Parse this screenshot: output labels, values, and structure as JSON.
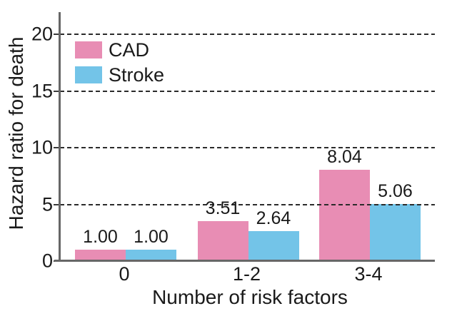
{
  "chart_data": {
    "type": "bar",
    "title": "",
    "xlabel": "Number of risk factors",
    "ylabel": "Hazard ratio for death",
    "categories": [
      "0",
      "1-2",
      "3-4"
    ],
    "series": [
      {
        "name": "CAD",
        "color": "#e88db4",
        "values": [
          1.0,
          3.51,
          8.04
        ],
        "value_labels": [
          "1.00",
          "3.51",
          "8.04"
        ]
      },
      {
        "name": "Stroke",
        "color": "#73c4e8",
        "values": [
          1.0,
          2.64,
          5.06
        ],
        "value_labels": [
          "1.00",
          "2.64",
          "5.06"
        ]
      }
    ],
    "yticks": [
      0,
      5,
      10,
      15,
      20
    ],
    "ylim": [
      0,
      22
    ],
    "grid": {
      "horizontal": true,
      "style": "dashed",
      "at": [
        5,
        10,
        15,
        20
      ]
    },
    "legend_position": "top-left",
    "colors": {
      "cad_pink": "#e88db4",
      "stroke_blue": "#73c4e8",
      "axis_gray": "#676767",
      "gridline_dark": "#2b2b2b",
      "text_black": "#1a1a1a"
    }
  }
}
